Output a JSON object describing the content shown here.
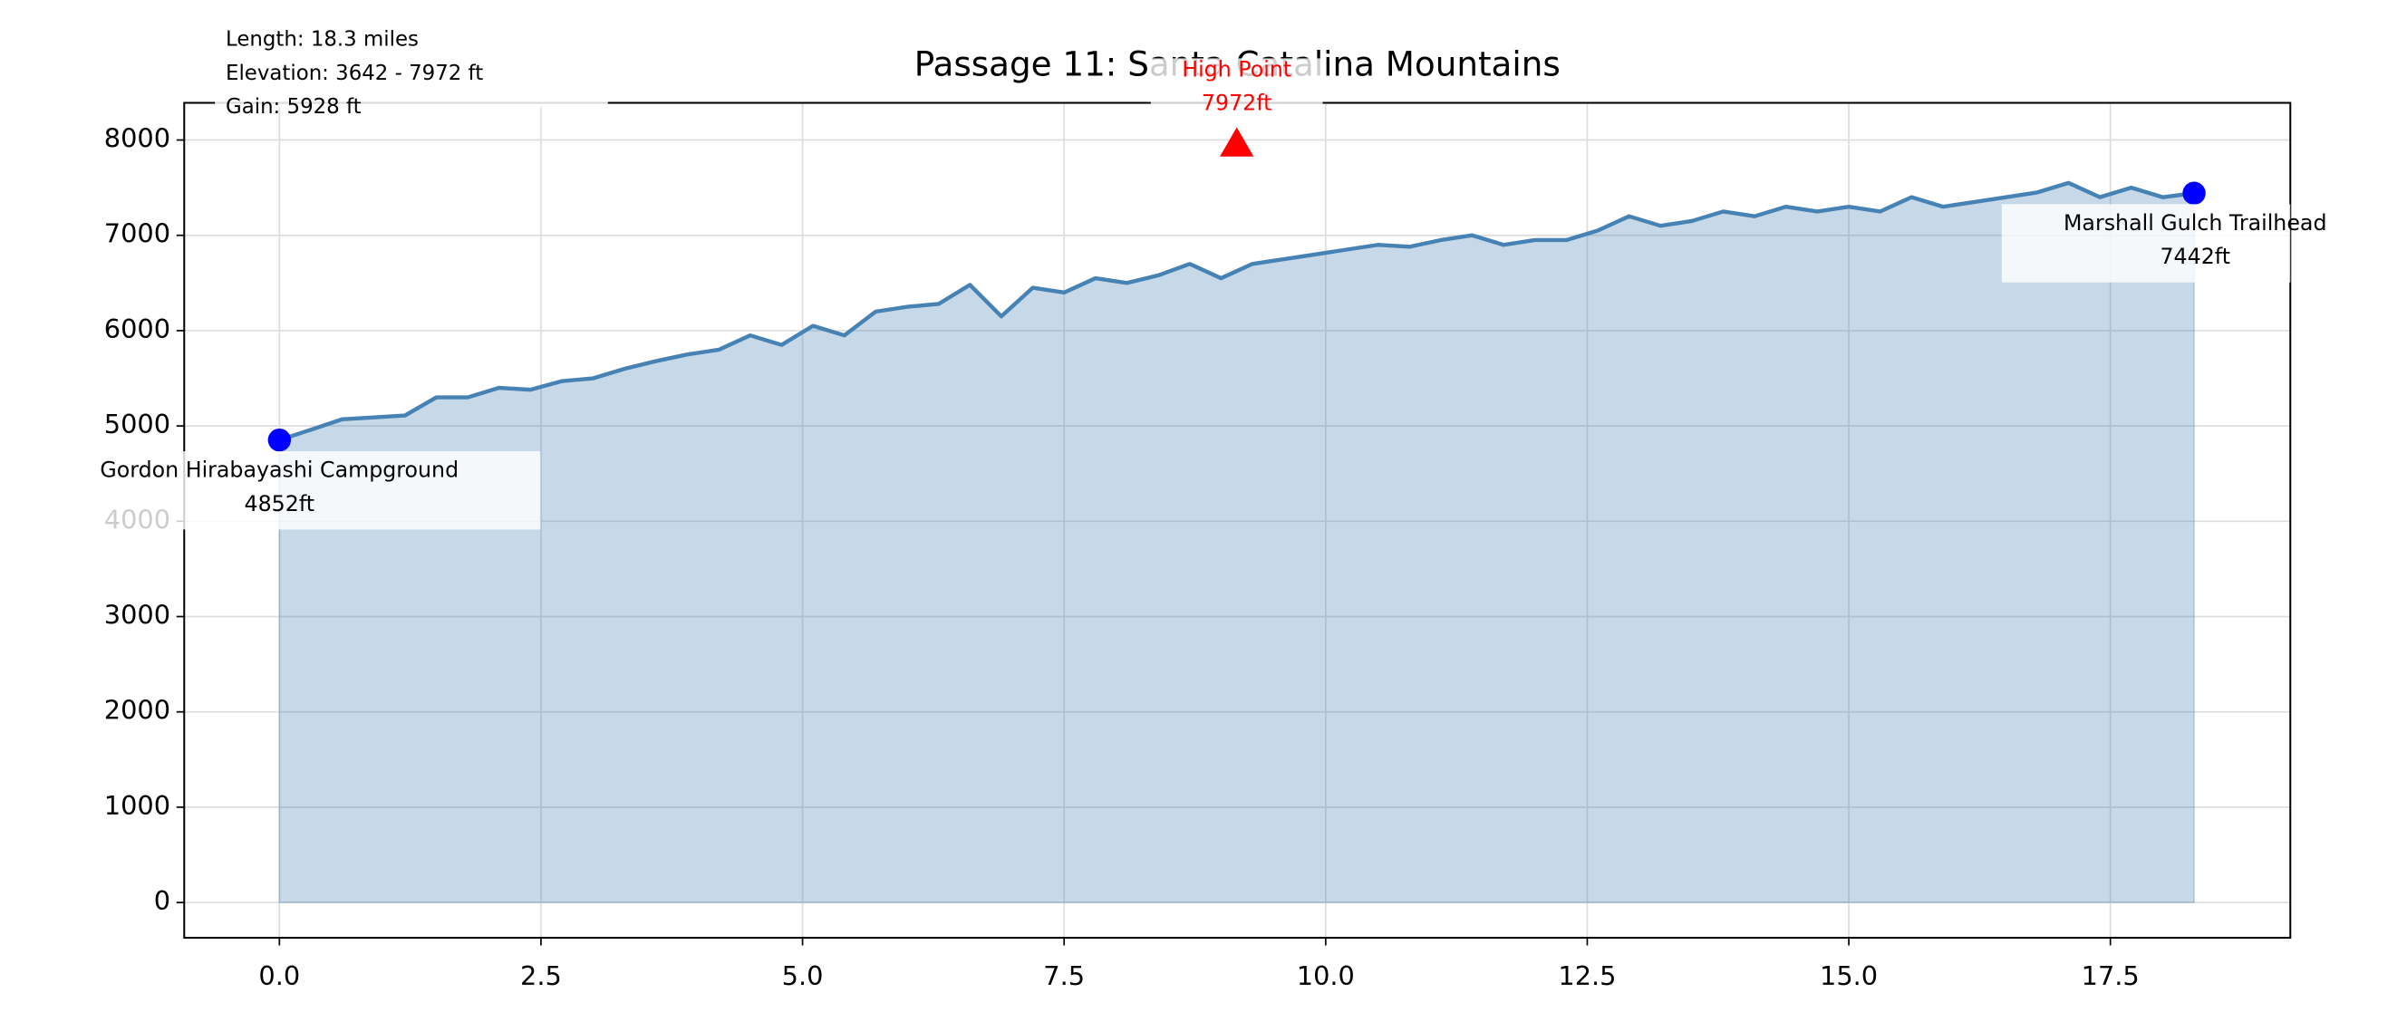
{
  "chart_data": {
    "type": "area",
    "title": "Passage 11: Santa Catalina Mountains",
    "info": [
      "Length: 18.3 miles",
      "Elevation: 3642 - 7972 ft",
      "Gain: 5928 ft"
    ],
    "x": [
      0.0,
      0.3,
      0.6,
      0.9,
      1.2,
      1.5,
      1.8,
      2.1,
      2.4,
      2.7,
      3.0,
      3.3,
      3.6,
      3.9,
      4.2,
      4.5,
      4.8,
      5.1,
      5.4,
      5.7,
      6.0,
      6.3,
      6.6,
      6.9,
      7.2,
      7.5,
      7.8,
      8.1,
      8.4,
      8.7,
      9.0,
      9.3,
      9.6,
      9.9,
      10.2,
      10.5,
      10.8,
      11.1,
      11.4,
      11.7,
      12.0,
      12.3,
      12.6,
      12.9,
      13.2,
      13.5,
      13.8,
      14.1,
      14.4,
      14.7,
      15.0,
      15.3,
      15.6,
      15.9,
      16.2,
      16.5,
      16.8,
      17.1,
      17.4,
      17.7,
      18.0,
      18.3
    ],
    "values": [
      4852,
      4960,
      5070,
      5090,
      5110,
      5300,
      5300,
      5400,
      5380,
      5470,
      5500,
      5600,
      5680,
      5750,
      5800,
      5950,
      5850,
      6050,
      5950,
      6200,
      6250,
      6280,
      6480,
      6150,
      6450,
      6400,
      6550,
      6500,
      6580,
      6700,
      6550,
      6700,
      6750,
      6800,
      6850,
      6900,
      6880,
      6950,
      7000,
      6900,
      6950,
      6950,
      7050,
      7200,
      7100,
      7150,
      7250,
      7200,
      7300,
      7250,
      7300,
      7250,
      7400,
      7300,
      7350,
      7400,
      7450,
      7550,
      7400,
      7500,
      7400,
      7442
    ],
    "color": "#4682b4",
    "markers": [
      {
        "name": "Gordon Hirabayashi Campground",
        "x": 0.0,
        "value": 4852,
        "value_label": "4852ft",
        "color": "#0000ff"
      },
      {
        "name": "Marshall Gulch Trailhead",
        "x": 18.3,
        "value": 7442,
        "value_label": "7442ft",
        "color": "#0000ff"
      }
    ],
    "high_point": {
      "name": "High Point",
      "x": 9.15,
      "value": 7972,
      "value_label": "7972ft",
      "color": "#ff0000"
    },
    "xlim": [
      -0.91,
      19.22
    ],
    "ylim": [
      -370,
      8390
    ],
    "xticks": [
      {
        "value": 0,
        "label": "0.0"
      },
      {
        "value": 2.5,
        "label": "2.5"
      },
      {
        "value": 5,
        "label": "5.0"
      },
      {
        "value": 7.5,
        "label": "7.5"
      },
      {
        "value": 10,
        "label": "10.0"
      },
      {
        "value": 12.5,
        "label": "12.5"
      },
      {
        "value": 15,
        "label": "15.0"
      },
      {
        "value": 17.5,
        "label": "17.5"
      }
    ],
    "yticks": [
      0,
      1000,
      2000,
      3000,
      4000,
      5000,
      6000,
      7000,
      8000
    ],
    "grid": true
  }
}
